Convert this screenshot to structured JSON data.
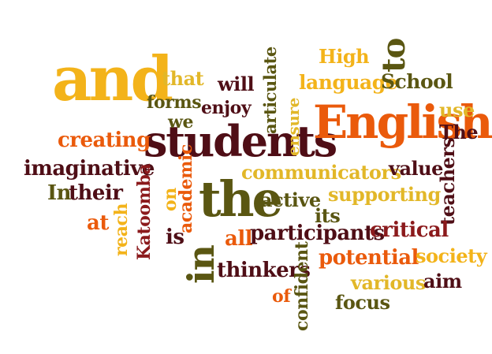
{
  "words": {
    "and": "and",
    "that": "that",
    "will": "will",
    "articulate": "articulate",
    "high": "High",
    "to": "to",
    "language": "language",
    "school": "School",
    "forms": "forms",
    "enjoy": "enjoy",
    "we": "we",
    "ensure": "ensure",
    "english": "English",
    "use": "use",
    "the_cap": "The",
    "creating": "creating",
    "students": "students",
    "imaginative": "imaginative",
    "communicators": "communicators",
    "value": "value",
    "in_cap": "In",
    "their": "their",
    "on": "on",
    "academic": "academic",
    "the": "the",
    "active": "active",
    "supporting": "supporting",
    "teachers": "teachers",
    "katoomba": "Katoomba",
    "reach": "reach",
    "at": "at",
    "its": "its",
    "is": "is",
    "all": "all",
    "participants": "participants",
    "critical": "critical",
    "in": "in",
    "thinkers": "thinkers",
    "confident": "confident",
    "potential": "potential",
    "society": "society",
    "various": "various",
    "aim": "aim",
    "of": "of",
    "focus": "focus"
  },
  "colors": {
    "dark": "#4f0e16",
    "red": "#8b1a1c",
    "orange": "#ea5a0b",
    "gold": "#f3b31a",
    "yellow": "#e2b728",
    "olive": "#5a5612",
    "lime": "#a4a020"
  }
}
